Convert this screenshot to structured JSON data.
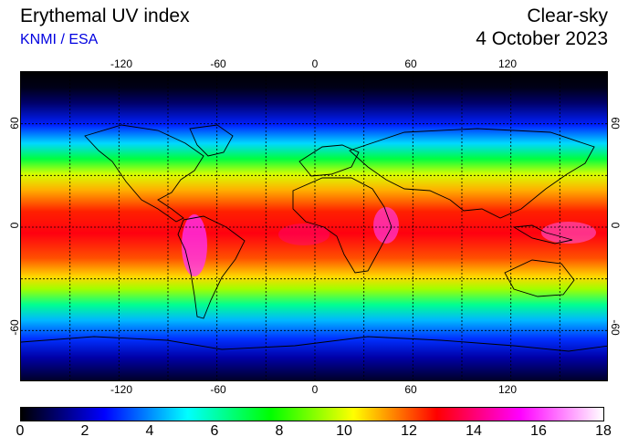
{
  "header": {
    "title": "Erythemal UV index",
    "source": "KNMI / ESA",
    "mode": "Clear-sky",
    "date": "4 October 2023",
    "source_color": "#0000e0"
  },
  "map": {
    "type": "heatmap",
    "projection": "equirectangular",
    "lon_range": [
      -180,
      180
    ],
    "lat_range": [
      -90,
      90
    ],
    "grid": "dotted, 30 degree",
    "lon_ticks": [
      "-120",
      "-60",
      "0",
      "60",
      "120"
    ],
    "lat_ticks_left": [
      "60",
      "0",
      "-60"
    ],
    "lat_ticks_right": [
      "60",
      "0",
      "-60"
    ]
  },
  "colorbar": {
    "min": 0,
    "max": 18,
    "labels": [
      "0",
      "2",
      "4",
      "6",
      "8",
      "10",
      "12",
      "14",
      "16",
      "18"
    ],
    "stops": [
      "#000000",
      "#0000ff",
      "#00ffff",
      "#00ff00",
      "#ffff00",
      "#ff0000",
      "#ff00ff",
      "#ffffff"
    ]
  }
}
